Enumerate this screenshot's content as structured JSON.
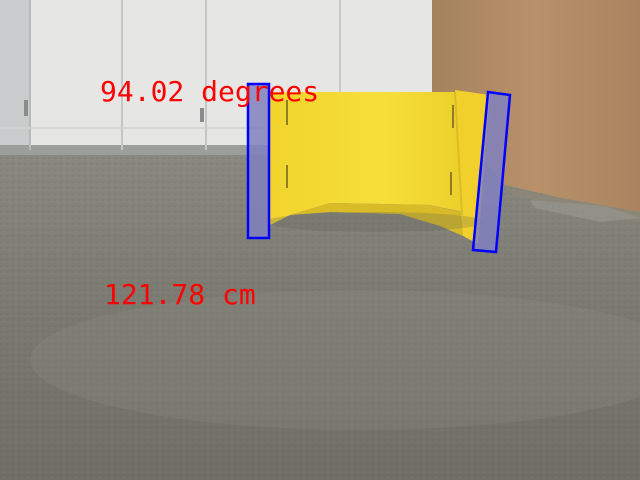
{
  "overlay": {
    "angle_text": "94.02 degrees",
    "distance_text": "121.78 cm",
    "text_color": "#ff0000",
    "box_stroke": "#0000ff",
    "box_fill": "#8080c0"
  },
  "colors": {
    "cabinet": "#e7e8e6",
    "wall_left": "#b9bdbe",
    "cardboard": "#b38d66",
    "floor": "#7e7d73",
    "target_yellow": "#f4d92a"
  }
}
